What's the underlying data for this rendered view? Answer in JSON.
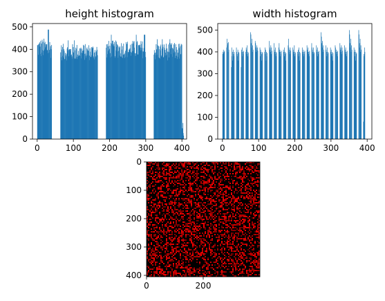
{
  "figure": {
    "bar_color": "#1f77b4",
    "heat_color": "#ff0000",
    "heat_bg": "#000000"
  },
  "chart_data": [
    {
      "type": "bar",
      "title": "height histogram",
      "xlim": [
        -13,
        413
      ],
      "ylim": [
        0,
        515
      ],
      "xticks": [
        0,
        100,
        200,
        300,
        400
      ],
      "yticks": [
        0,
        100,
        200,
        300,
        400,
        500
      ],
      "bin_width": 1,
      "segments": [
        {
          "x_start": 0,
          "x_end": 40,
          "typical_range": [
            360,
            450
          ],
          "peak": 488
        },
        {
          "x_start": 64,
          "x_end": 167,
          "typical_range": [
            350,
            425
          ],
          "peak": 440
        },
        {
          "x_start": 190,
          "x_end": 300,
          "typical_range": [
            360,
            440
          ],
          "peak": 465
        },
        {
          "x_start": 322,
          "x_end": 400,
          "typical_range": [
            350,
            430
          ],
          "peak": 445
        },
        {
          "x_start": 400,
          "x_end": 405,
          "typical_range": [
            10,
            80
          ],
          "peak": 80
        }
      ]
    },
    {
      "type": "bar",
      "title": "width histogram",
      "xlim": [
        -13,
        413
      ],
      "ylim": [
        0,
        530
      ],
      "xticks": [
        0,
        100,
        200,
        300,
        400
      ],
      "yticks": [
        0,
        100,
        200,
        300,
        400,
        500
      ],
      "bin_width": 1,
      "groups": [
        {
          "x_start": 0,
          "x_end": 6,
          "values": [
            390,
            400,
            410,
            395,
            400,
            405
          ]
        },
        {
          "x_start": 11,
          "x_end": 18,
          "values": [
            420,
            460,
            430,
            440,
            400,
            445,
            410
          ]
        },
        {
          "x_start": 24,
          "x_end": 33,
          "values": [
            330,
            420,
            380,
            400,
            360,
            410,
            390,
            380,
            400
          ]
        },
        {
          "x_start": 38,
          "x_end": 46,
          "values": [
            420,
            400,
            390,
            380,
            410,
            360,
            400,
            395
          ]
        },
        {
          "x_start": 51,
          "x_end": 59,
          "values": [
            330,
            410,
            400,
            420,
            380,
            400,
            390,
            405
          ]
        },
        {
          "x_start": 64,
          "x_end": 72,
          "values": [
            400,
            420,
            410,
            390,
            430,
            380,
            400,
            395
          ]
        },
        {
          "x_start": 77,
          "x_end": 85,
          "values": [
            490,
            480,
            440,
            420,
            460,
            400,
            430,
            410
          ]
        },
        {
          "x_start": 90,
          "x_end": 98,
          "values": [
            450,
            440,
            420,
            400,
            430,
            410,
            420,
            405
          ]
        },
        {
          "x_start": 103,
          "x_end": 111,
          "values": [
            420,
            380,
            410,
            400,
            390,
            360,
            400,
            395
          ]
        },
        {
          "x_start": 116,
          "x_end": 124,
          "values": [
            400,
            420,
            390,
            410,
            360,
            400,
            380,
            395
          ]
        },
        {
          "x_start": 129,
          "x_end": 137,
          "values": [
            450,
            420,
            410,
            400,
            430,
            390,
            420,
            405
          ]
        },
        {
          "x_start": 142,
          "x_end": 150,
          "values": [
            440,
            410,
            400,
            390,
            420,
            380,
            400,
            395
          ]
        },
        {
          "x_start": 155,
          "x_end": 163,
          "values": [
            420,
            440,
            400,
            410,
            380,
            400,
            390,
            405
          ]
        },
        {
          "x_start": 168,
          "x_end": 176,
          "values": [
            410,
            400,
            380,
            420,
            390,
            400,
            360,
            395
          ]
        },
        {
          "x_start": 181,
          "x_end": 189,
          "values": [
            430,
            460,
            420,
            400,
            410,
            390,
            420,
            405
          ]
        },
        {
          "x_start": 194,
          "x_end": 202,
          "values": [
            420,
            410,
            400,
            390,
            430,
            380,
            400,
            395
          ]
        },
        {
          "x_start": 207,
          "x_end": 215,
          "values": [
            400,
            390,
            410,
            380,
            420,
            360,
            400,
            395
          ]
        },
        {
          "x_start": 220,
          "x_end": 228,
          "values": [
            420,
            400,
            390,
            410,
            380,
            400,
            390,
            405
          ]
        },
        {
          "x_start": 233,
          "x_end": 241,
          "values": [
            430,
            410,
            400,
            420,
            390,
            400,
            380,
            405
          ]
        },
        {
          "x_start": 246,
          "x_end": 254,
          "values": [
            440,
            420,
            410,
            400,
            390,
            420,
            400,
            395
          ]
        },
        {
          "x_start": 259,
          "x_end": 267,
          "values": [
            430,
            410,
            400,
            420,
            380,
            400,
            390,
            405
          ]
        },
        {
          "x_start": 272,
          "x_end": 280,
          "values": [
            490,
            470,
            440,
            420,
            450,
            400,
            430,
            410
          ]
        },
        {
          "x_start": 285,
          "x_end": 293,
          "values": [
            430,
            410,
            400,
            380,
            420,
            390,
            400,
            395
          ]
        },
        {
          "x_start": 298,
          "x_end": 306,
          "values": [
            420,
            400,
            410,
            390,
            380,
            400,
            360,
            395
          ]
        },
        {
          "x_start": 311,
          "x_end": 319,
          "values": [
            430,
            420,
            400,
            410,
            390,
            400,
            380,
            405
          ]
        },
        {
          "x_start": 324,
          "x_end": 332,
          "values": [
            440,
            420,
            410,
            400,
            430,
            390,
            420,
            405
          ]
        },
        {
          "x_start": 337,
          "x_end": 345,
          "values": [
            430,
            410,
            400,
            420,
            390,
            400,
            380,
            405
          ]
        },
        {
          "x_start": 350,
          "x_end": 358,
          "values": [
            500,
            480,
            440,
            420,
            460,
            400,
            430,
            410
          ]
        },
        {
          "x_start": 363,
          "x_end": 371,
          "values": [
            420,
            400,
            380,
            410,
            360,
            400,
            390,
            395
          ]
        },
        {
          "x_start": 376,
          "x_end": 384,
          "values": [
            500,
            480,
            440,
            420,
            460,
            400,
            430,
            410
          ]
        },
        {
          "x_start": 389,
          "x_end": 394,
          "values": [
            80,
            390,
            380,
            420,
            400
          ]
        }
      ]
    },
    {
      "type": "heatmap",
      "xlim": [
        0,
        400
      ],
      "ylim": [
        0,
        405
      ],
      "xticks": [
        0,
        200
      ],
      "yticks": [
        0,
        100,
        200,
        300,
        400
      ],
      "description_colors": [
        "#000000",
        "#ff0000"
      ]
    }
  ]
}
